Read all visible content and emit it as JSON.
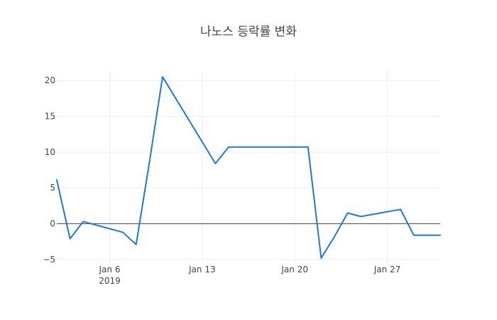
{
  "chart_data": {
    "type": "line",
    "title": "나노스 등락률 변화",
    "xlabel": "",
    "ylabel": "",
    "x_axis": {
      "type": "date",
      "range": [
        "2019-01-02",
        "2019-01-31"
      ],
      "ticks": [
        {
          "date": "2019-01-06",
          "label": "Jan 6",
          "sublabel": "2019"
        },
        {
          "date": "2019-01-13",
          "label": "Jan 13",
          "sublabel": ""
        },
        {
          "date": "2019-01-20",
          "label": "Jan 20",
          "sublabel": ""
        },
        {
          "date": "2019-01-27",
          "label": "Jan 27",
          "sublabel": ""
        }
      ]
    },
    "y_axis": {
      "range": [
        -5.5,
        21.3
      ],
      "ticks": [
        {
          "value": -5,
          "label": "−5"
        },
        {
          "value": 0,
          "label": "0"
        },
        {
          "value": 5,
          "label": "5"
        },
        {
          "value": 10,
          "label": "10"
        },
        {
          "value": 15,
          "label": "15"
        },
        {
          "value": 20,
          "label": "20"
        }
      ]
    },
    "grid": true,
    "series": [
      {
        "color": "#1f77e0",
        "points": [
          {
            "x": "2019-01-02",
            "y": 6.1
          },
          {
            "x": "2019-01-03",
            "y": -2.1
          },
          {
            "x": "2019-01-04",
            "y": 0.3
          },
          {
            "x": "2019-01-07",
            "y": -1.2
          },
          {
            "x": "2019-01-08",
            "y": -2.9
          },
          {
            "x": "2019-01-09",
            "y": 8.5
          },
          {
            "x": "2019-01-10",
            "y": 20.5
          },
          {
            "x": "2019-01-14",
            "y": 8.4
          },
          {
            "x": "2019-01-15",
            "y": 10.7
          },
          {
            "x": "2019-01-21",
            "y": 10.7
          },
          {
            "x": "2019-01-22",
            "y": -4.8
          },
          {
            "x": "2019-01-23",
            "y": -1.8
          },
          {
            "x": "2019-01-24",
            "y": 1.5
          },
          {
            "x": "2019-01-25",
            "y": 1.0
          },
          {
            "x": "2019-01-28",
            "y": 2.0
          },
          {
            "x": "2019-01-29",
            "y": -1.6
          },
          {
            "x": "2019-01-30",
            "y": -1.6
          },
          {
            "x": "2019-01-31",
            "y": -1.6
          }
        ]
      }
    ]
  }
}
